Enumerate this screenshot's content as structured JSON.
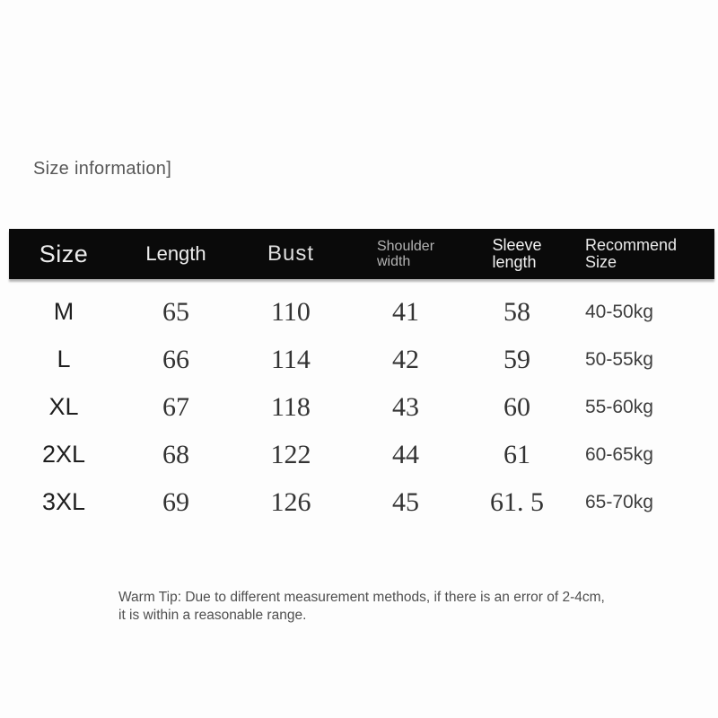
{
  "title": "Size information]",
  "colors": {
    "background": "#fdfdfd",
    "header_bar_bg": "#0a0a0a",
    "header_text": "#ededed",
    "header_muted_text": "#b3b3b3",
    "body_text": "#333333",
    "tip_text": "#4f4f4f"
  },
  "table": {
    "columns": [
      {
        "label": "Size"
      },
      {
        "label": "Length"
      },
      {
        "label": "Bust"
      },
      {
        "line1": "Shoulder",
        "line2": "width"
      },
      {
        "line1": "Sleeve",
        "line2": "length"
      },
      {
        "line1": "Recommend",
        "line2": "Size"
      }
    ],
    "rows": [
      {
        "size": "M",
        "length": "65",
        "bust": "110",
        "shoulder_width": "41",
        "sleeve_length": "58",
        "recommend": "40-50kg"
      },
      {
        "size": "L",
        "length": "66",
        "bust": "114",
        "shoulder_width": "42",
        "sleeve_length": "59",
        "recommend": "50-55kg"
      },
      {
        "size": "XL",
        "length": "67",
        "bust": "118",
        "shoulder_width": "43",
        "sleeve_length": "60",
        "recommend": "55-60kg"
      },
      {
        "size": "2XL",
        "length": "68",
        "bust": "122",
        "shoulder_width": "44",
        "sleeve_length": "61",
        "recommend": "60-65kg"
      },
      {
        "size": "3XL",
        "length": "69",
        "bust": "126",
        "shoulder_width": "45",
        "sleeve_length": "61. 5",
        "recommend": "65-70kg"
      }
    ]
  },
  "warm_tip": {
    "line1": "Warm Tip: Due to different measurement methods, if there is an error of 2-4cm,",
    "line2": "it is within a reasonable range."
  }
}
